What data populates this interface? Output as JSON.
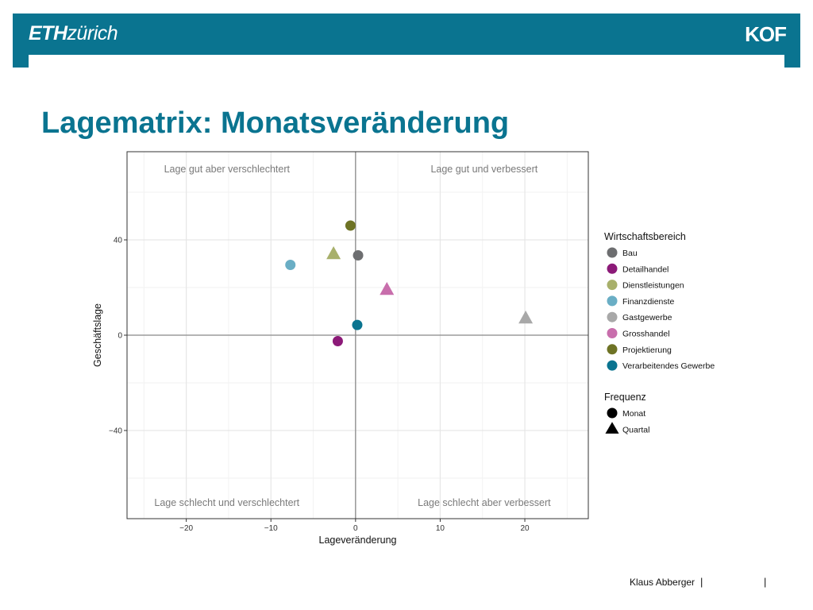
{
  "header": {
    "brand_eth": "ETH",
    "brand_zurich": "zürich",
    "brand_kof": "KOF",
    "color": "#0a7490"
  },
  "page": {
    "title": "Lagematrix: Monatsveränderung"
  },
  "chart_data": {
    "type": "scatter",
    "xlabel": "Lageveränderung",
    "ylabel": "Geschäftslage",
    "xlim": [
      -27,
      27.5
    ],
    "ylim": [
      -77,
      77
    ],
    "x_ticks": [
      -20,
      -10,
      0,
      10,
      20
    ],
    "y_ticks": [
      -40,
      0,
      40
    ],
    "x_tick_labels": [
      "−20",
      "−10",
      "0",
      "10",
      "20"
    ],
    "y_tick_labels": [
      "−40",
      "0",
      "40"
    ],
    "grid": true,
    "quadrant_labels": {
      "top_left": "Lage gut aber verschlechtert",
      "top_right": "Lage gut und verbessert",
      "bottom_left": "Lage schlecht und verschlechtert",
      "bottom_right": "Lage schlecht aber verbessert"
    },
    "points": [
      {
        "sector": "Bau",
        "frequency": "Monat",
        "x": 0.3,
        "y": 33.5
      },
      {
        "sector": "Detailhandel",
        "frequency": "Monat",
        "x": -2.1,
        "y": -2.5
      },
      {
        "sector": "Dienstleistungen",
        "frequency": "Quartal",
        "x": -2.6,
        "y": 34.0
      },
      {
        "sector": "Finanzdienste",
        "frequency": "Monat",
        "x": -7.7,
        "y": 29.5
      },
      {
        "sector": "Gastgewerbe",
        "frequency": "Quartal",
        "x": 20.1,
        "y": 7.0
      },
      {
        "sector": "Grosshandel",
        "frequency": "Quartal",
        "x": 3.7,
        "y": 19.0
      },
      {
        "sector": "Projektierung",
        "frequency": "Monat",
        "x": -0.6,
        "y": 46.0
      },
      {
        "sector": "Verarbeitendes Gewerbe",
        "frequency": "Monat",
        "x": 0.2,
        "y": 4.3
      }
    ],
    "legend_placement": "right",
    "legend_sector_title": "Wirtschaftsbereich",
    "legend_sectors": [
      {
        "name": "Bau",
        "color": "#6d6e70"
      },
      {
        "name": "Detailhandel",
        "color": "#8c1a78"
      },
      {
        "name": "Dienstleistungen",
        "color": "#a8b06b"
      },
      {
        "name": "Finanzdienste",
        "color": "#6aaec5"
      },
      {
        "name": "Gastgewerbe",
        "color": "#a8a8a8"
      },
      {
        "name": "Grosshandel",
        "color": "#c86eac"
      },
      {
        "name": "Projektierung",
        "color": "#6e7325"
      },
      {
        "name": "Verarbeitendes Gewerbe",
        "color": "#0a7490"
      }
    ],
    "legend_frequency_title": "Frequenz",
    "legend_frequencies": [
      {
        "name": "Monat",
        "shape": "circle"
      },
      {
        "name": "Quartal",
        "shape": "triangle"
      }
    ]
  },
  "footer": {
    "author": "Klaus Abberger",
    "separator": "|"
  }
}
